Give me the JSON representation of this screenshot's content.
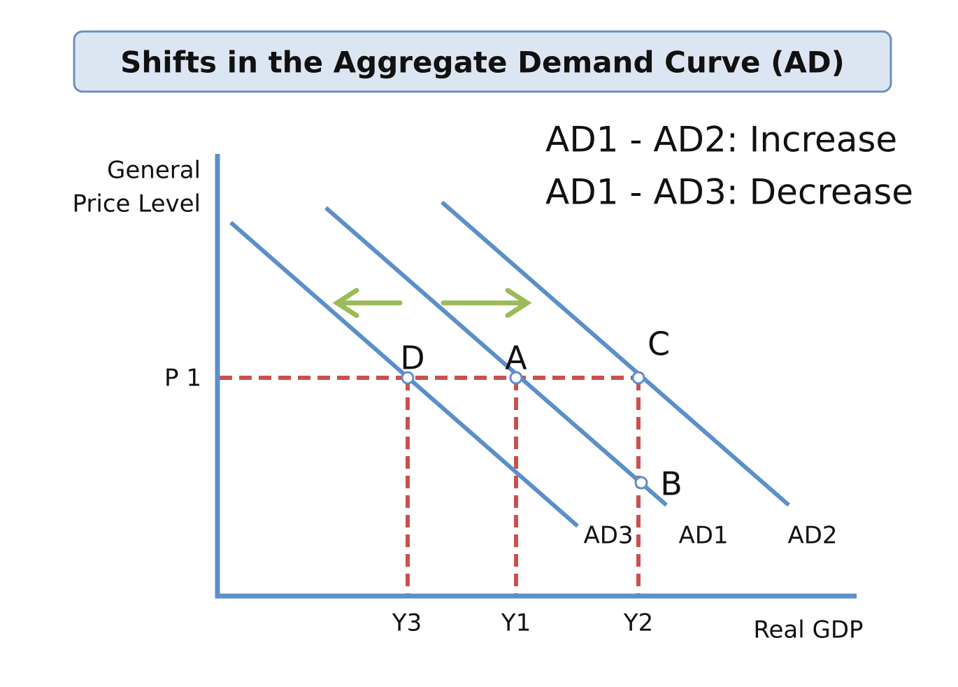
{
  "title": "Shifts in the Aggregate Demand Curve (AD)",
  "notes": [
    "AD1 - AD2: Increase",
    "AD1 - AD3: Decrease"
  ],
  "y_axis_label": [
    "General",
    "Price Level"
  ],
  "x_axis_label": "Real GDP",
  "price_label": "P 1",
  "quantity_labels": [
    "Y3",
    "Y1",
    "Y2"
  ],
  "curves": [
    "AD3",
    "AD1",
    "AD2"
  ],
  "points": [
    "D",
    "A",
    "C",
    "B"
  ]
}
